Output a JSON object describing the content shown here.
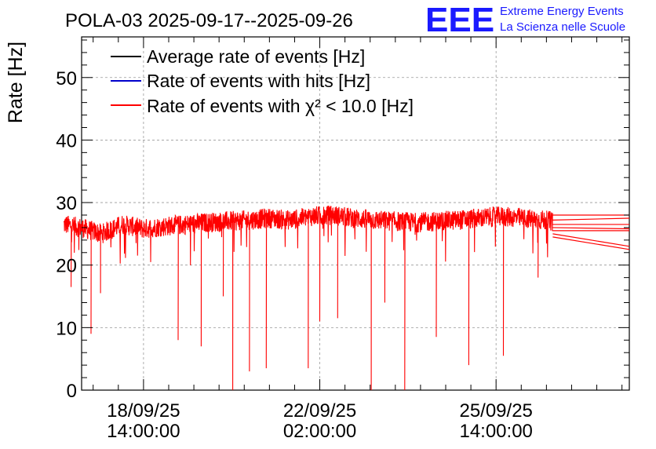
{
  "header": {
    "title": "POLA-03 2025-09-17--2025-09-26",
    "logo_text": "EEE",
    "logo_line1": "Extreme Energy Events",
    "logo_line2": "La Scienza nelle Scuole"
  },
  "colors": {
    "average": "#000000",
    "hits": "#0000cc",
    "chi2": "#ff0000",
    "logo": "#1a1aff",
    "grid": "#999999"
  },
  "chart_data": {
    "type": "line",
    "title": "POLA-03 2025-09-17--2025-09-26",
    "xlabel": "",
    "ylabel": "Rate [Hz]",
    "ylim": [
      0,
      56.5
    ],
    "yticks": [
      0,
      10,
      20,
      30,
      40,
      50
    ],
    "xlim_hours": [
      -29.5,
      231.5
    ],
    "xticks": [
      {
        "hours": 0,
        "date": "18/09/25",
        "time": "14:00:00"
      },
      {
        "hours": 84,
        "date": "22/09/25",
        "time": "02:00:00"
      },
      {
        "hours": 168,
        "date": "25/09/25",
        "time": "14:00:00"
      }
    ],
    "x_reference": "18/09/25 14:00:00",
    "legend": {
      "placement": "top-left",
      "entries": [
        {
          "label": "Average rate of events [Hz]",
          "color_key": "average"
        },
        {
          "label": "Rate of events with hits [Hz]",
          "color_key": "hits"
        },
        {
          "label": "Rate of events with χ² < 10.0 [Hz]",
          "color_key": "chi2"
        }
      ]
    },
    "series": [
      {
        "name": "Rate of events with χ² < 10.0 [Hz]",
        "color_key": "chi2",
        "x_hours": [
          -38,
          -30,
          -20,
          -10,
          0,
          10,
          20,
          30,
          40,
          50,
          60,
          70,
          80,
          90,
          100,
          110,
          120,
          130,
          140,
          150,
          160,
          170,
          180,
          190,
          195
        ],
        "values": [
          26.5,
          26.0,
          25.0,
          26.5,
          25.8,
          26.2,
          26.5,
          26.8,
          27.0,
          27.2,
          27.5,
          27.2,
          27.8,
          28.0,
          27.5,
          27.2,
          27.0,
          26.8,
          27.0,
          27.2,
          27.5,
          27.8,
          27.5,
          27.2,
          27.0
        ],
        "noise_band": 1.6,
        "dips": [
          {
            "x_hours": -34.5,
            "value": 16.5
          },
          {
            "x_hours": -25,
            "value": 9.0
          },
          {
            "x_hours": -20.5,
            "value": 15.5
          },
          {
            "x_hours": 16.5,
            "value": 8.0
          },
          {
            "x_hours": 27.5,
            "value": 7.0
          },
          {
            "x_hours": 38,
            "value": 15.0
          },
          {
            "x_hours": 42.5,
            "value": 0.0
          },
          {
            "x_hours": 50.5,
            "value": 3.0
          },
          {
            "x_hours": 58.5,
            "value": 3.5
          },
          {
            "x_hours": 78.5,
            "value": 3.5
          },
          {
            "x_hours": 84,
            "value": 11.0
          },
          {
            "x_hours": 92.5,
            "value": 11.5
          },
          {
            "x_hours": 108.5,
            "value": 0.0
          },
          {
            "x_hours": 115,
            "value": 14.0
          },
          {
            "x_hours": 124.5,
            "value": 0.0
          },
          {
            "x_hours": 139.5,
            "value": 8.5
          },
          {
            "x_hours": 155,
            "value": 4.0
          },
          {
            "x_hours": 171.5,
            "value": 5.5
          },
          {
            "x_hours": 188,
            "value": 18.0
          }
        ],
        "tail": {
          "from_x_hours": 195,
          "to_x_hours": 231.5,
          "start_values": [
            28.0,
            27.2,
            26.5,
            26.0,
            25.5,
            25.0,
            24.5
          ],
          "end_values": [
            28.0,
            27.5,
            26.5,
            25.8,
            25.5,
            23.0,
            22.5
          ]
        }
      }
    ]
  }
}
